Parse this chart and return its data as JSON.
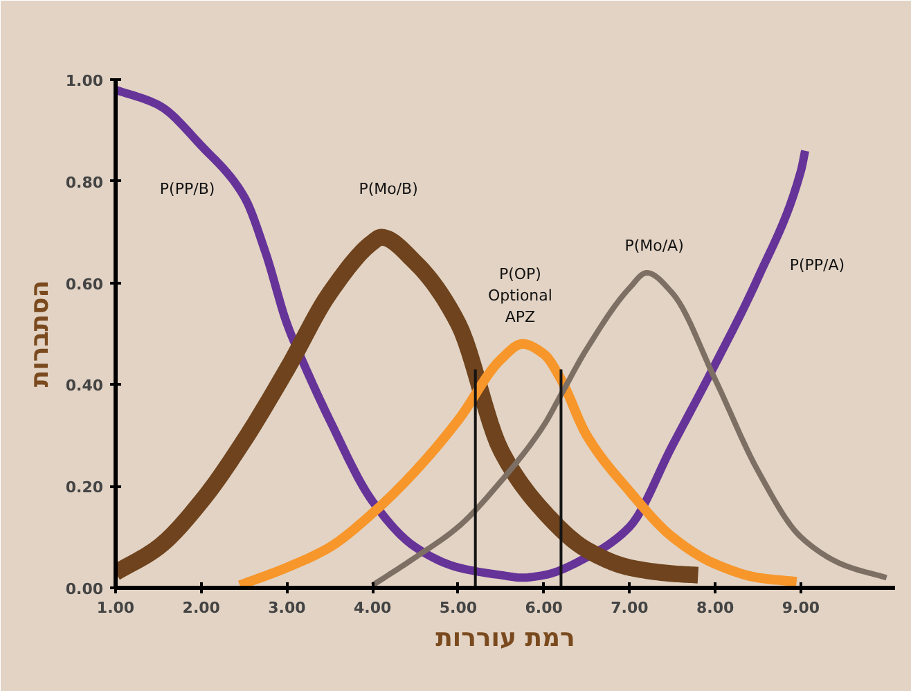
{
  "chart_data": {
    "type": "line",
    "xlabel": "רמת עוררות",
    "ylabel": "הסתברות",
    "xlim": [
      1,
      10.1
    ],
    "ylim": [
      0,
      1
    ],
    "xticks": [
      {
        "value": 1,
        "label": "1.00"
      },
      {
        "value": 2,
        "label": "2.00"
      },
      {
        "value": 3,
        "label": "3.00"
      },
      {
        "value": 4,
        "label": "4.00"
      },
      {
        "value": 5,
        "label": "5.00"
      },
      {
        "value": 6,
        "label": "6.00"
      },
      {
        "value": 7,
        "label": "7.00"
      },
      {
        "value": 8,
        "label": "8.00"
      },
      {
        "value": 9,
        "label": "9.00"
      }
    ],
    "yticks": [
      {
        "value": 0,
        "label": "0.00"
      },
      {
        "value": 0.2,
        "label": "0.20"
      },
      {
        "value": 0.4,
        "label": "0.40"
      },
      {
        "value": 0.6,
        "label": "0.60"
      },
      {
        "value": 0.8,
        "label": "0.80"
      },
      {
        "value": 1,
        "label": "1.00"
      }
    ],
    "grid": false,
    "marker": "none",
    "line_style": "solid",
    "series": [
      {
        "color": "#663399",
        "x": [
          1,
          1.5,
          2,
          2.5,
          2.75,
          3,
          3.16,
          3.5,
          4,
          4.5,
          5,
          5.5,
          5.75,
          6,
          6.5,
          7,
          7.5,
          8,
          8.5,
          9,
          9.05
        ],
        "values": [
          0.98,
          0.95,
          0.87,
          0.77,
          0.66,
          0.52,
          0.455,
          0.33,
          0.17,
          0.08,
          0.04,
          0.025,
          0.02,
          0.025,
          0.06,
          0.12,
          0.28,
          0.44,
          0.61,
          0.82,
          0.86
        ]
      },
      {
        "color": "#6e431d",
        "x": [
          1,
          1.5,
          2,
          2.5,
          3,
          3.5,
          4,
          4.1,
          4.5,
          5,
          5.5,
          6,
          6.5,
          7,
          7.5,
          7.8
        ],
        "values": [
          0.03,
          0.08,
          0.17,
          0.29,
          0.43,
          0.58,
          0.68,
          0.69,
          0.64,
          0.52,
          0.27,
          0.15,
          0.075,
          0.04,
          0.028,
          0.025
        ]
      },
      {
        "color": "#f7962a",
        "x": [
          2.45,
          3,
          3.5,
          4,
          4.5,
          5,
          5.5,
          5.75,
          6,
          6.2,
          6.5,
          7,
          7.5,
          8,
          8.5,
          8.95
        ],
        "values": [
          0.005,
          0.04,
          0.08,
          0.147,
          0.23,
          0.33,
          0.45,
          0.48,
          0.46,
          0.41,
          0.3,
          0.19,
          0.1,
          0.047,
          0.02,
          0.012
        ]
      },
      {
        "color": "#7d6f63",
        "x": [
          4,
          4.5,
          5,
          5.5,
          6,
          6.2,
          6.5,
          7,
          7.2,
          7.5,
          8,
          8.5,
          9,
          9.5,
          10
        ],
        "values": [
          0.005,
          0.06,
          0.12,
          0.21,
          0.32,
          0.38,
          0.47,
          0.59,
          0.62,
          0.58,
          0.41,
          0.23,
          0.1,
          0.045,
          0.02
        ]
      },
      {
        "color": "#141414",
        "x": [
          5.2,
          5.2
        ],
        "values": [
          0,
          0.43
        ]
      },
      {
        "color": "#141414",
        "x": [
          6.2,
          6.2
        ],
        "values": [
          0,
          0.43
        ]
      }
    ],
    "annotations": [
      "P(PP/B)",
      "P(Mo/B)",
      "P(OP)\nOptional\nAPZ",
      "P(Mo/A)",
      "P(PP/A)"
    ]
  }
}
